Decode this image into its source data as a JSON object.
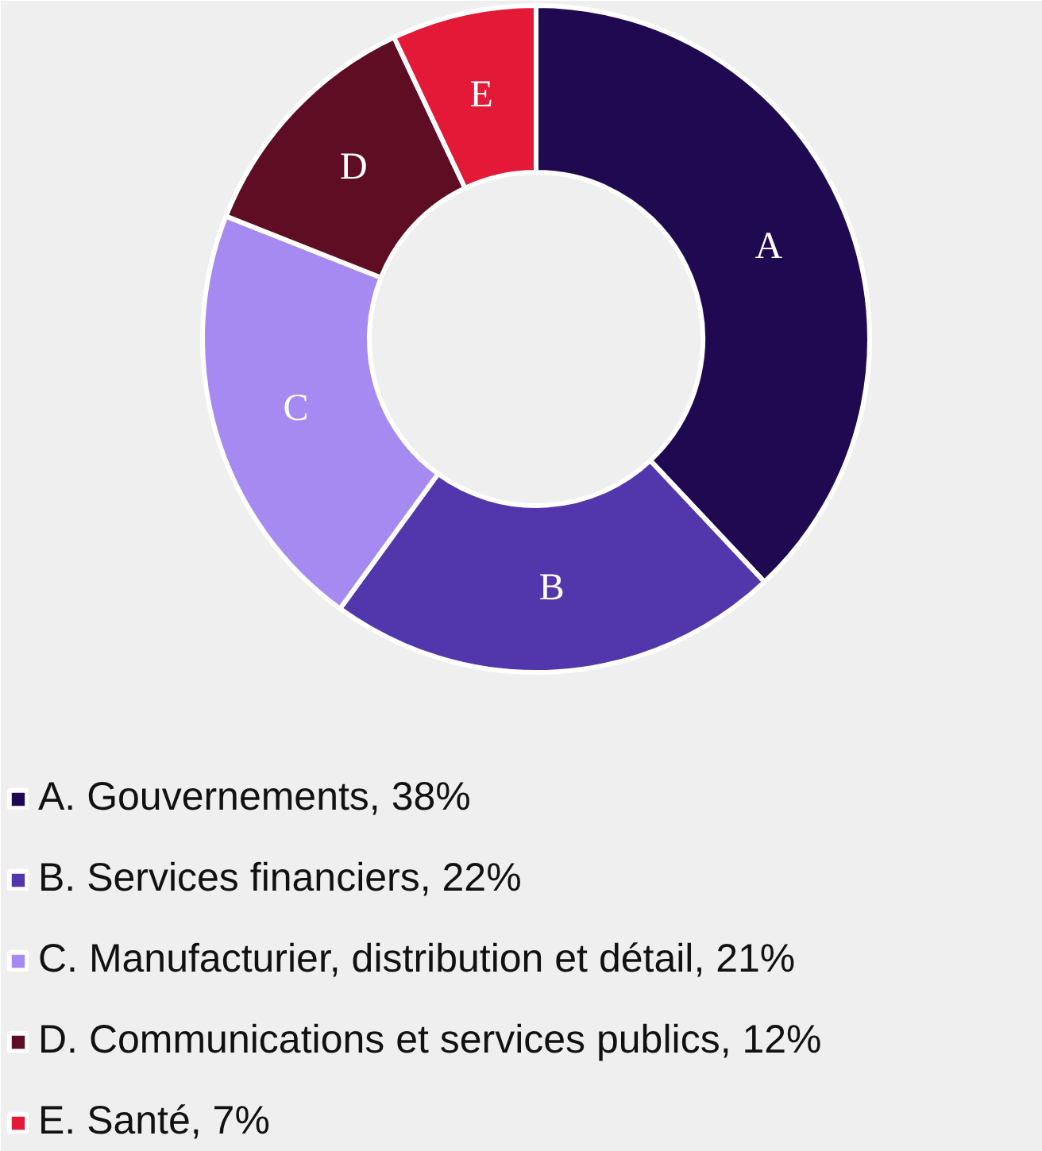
{
  "chart_data": {
    "type": "donut",
    "categories": [
      "A. Gouvernements, 38%",
      "B. Services financiers, 22%",
      "C. Manufacturier, distribution et détail, 21%",
      "D. Communications et services publics, 12%",
      "E. Santé, 7%"
    ],
    "values": [
      38,
      22,
      21,
      12,
      7
    ],
    "value_labels": [
      "A",
      "B",
      "C",
      "D",
      "E"
    ],
    "colors": [
      "#1f0a52",
      "#5236ab",
      "#a58af2",
      "#5e0d22",
      "#e31937"
    ],
    "legend": "bottom"
  }
}
